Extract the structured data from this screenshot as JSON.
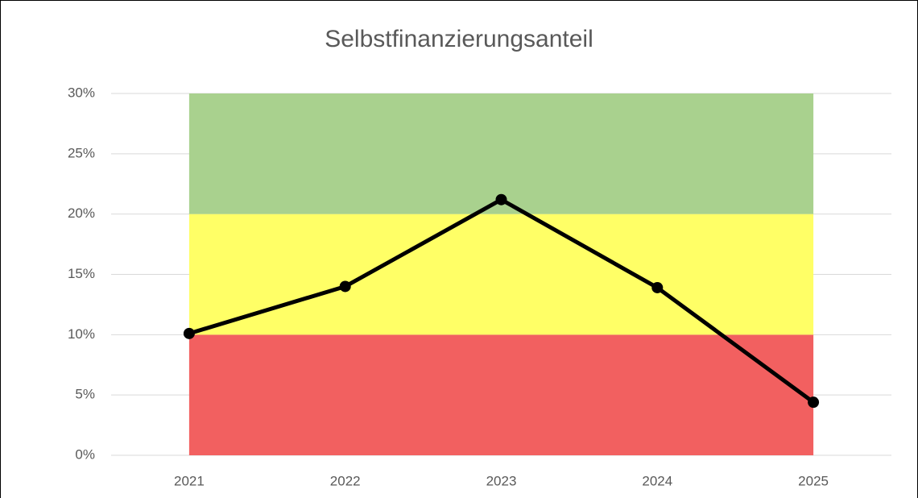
{
  "chart_data": {
    "type": "line",
    "title": "Selbstfinanzierungsanteil",
    "categories": [
      "2021",
      "2022",
      "2023",
      "2024",
      "2025"
    ],
    "bands": [
      {
        "color": "#f26060",
        "values": [
          10,
          10,
          10,
          10,
          10
        ]
      },
      {
        "color": "#ffff66",
        "values": [
          10,
          10,
          10,
          10,
          10
        ]
      },
      {
        "color": "#a9d18e",
        "values": [
          10,
          10,
          10,
          10,
          10
        ]
      }
    ],
    "series": [
      {
        "color": "#000000",
        "values": [
          10.1,
          14.0,
          21.2,
          13.9,
          4.4
        ]
      }
    ],
    "ylim": [
      0,
      30
    ],
    "yticks": [
      {
        "value": 0,
        "label": "0%"
      },
      {
        "value": 5,
        "label": "5%"
      },
      {
        "value": 10,
        "label": "10%"
      },
      {
        "value": 15,
        "label": "15%"
      },
      {
        "value": 20,
        "label": "20%"
      },
      {
        "value": 25,
        "label": "25%"
      },
      {
        "value": 30,
        "label": "30%"
      }
    ],
    "grid": true
  }
}
